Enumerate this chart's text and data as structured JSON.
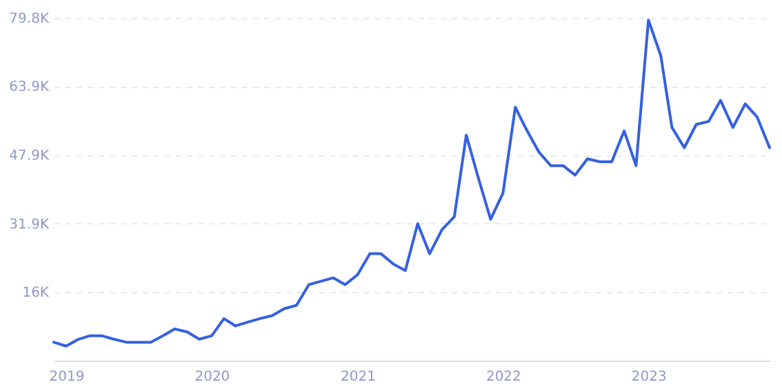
{
  "chart_data": {
    "type": "line",
    "x": [
      "2018-12",
      "2019-01",
      "2019-02",
      "2019-03",
      "2019-04",
      "2019-05",
      "2019-06",
      "2019-07",
      "2019-08",
      "2019-09",
      "2019-10",
      "2019-11",
      "2019-12",
      "2020-01",
      "2020-02",
      "2020-03",
      "2020-04",
      "2020-05",
      "2020-06",
      "2020-07",
      "2020-08",
      "2020-09",
      "2020-10",
      "2020-11",
      "2020-12",
      "2021-01",
      "2021-02",
      "2021-03",
      "2021-04",
      "2021-05",
      "2021-06",
      "2021-07",
      "2021-08",
      "2021-09",
      "2021-10",
      "2021-11",
      "2021-12",
      "2022-01",
      "2022-02",
      "2022-03",
      "2022-04",
      "2022-05",
      "2022-06",
      "2022-07",
      "2022-08",
      "2022-09",
      "2022-10",
      "2022-11",
      "2022-12",
      "2023-01",
      "2023-02",
      "2023-03",
      "2023-04",
      "2023-05",
      "2023-06",
      "2023-07",
      "2023-08",
      "2023-09",
      "2023-10",
      "2023-11"
    ],
    "series": [
      {
        "color": "#3461e0",
        "values": [
          4.3,
          3.4,
          5.0,
          5.8,
          5.8,
          5.0,
          4.3,
          4.3,
          4.3,
          5.8,
          7.4,
          6.7,
          5.0,
          5.8,
          9.8,
          8.1,
          9.0,
          9.8,
          10.5,
          12.1,
          12.9,
          17.7,
          18.5,
          19.3,
          17.7,
          20.0,
          24.9,
          24.9,
          22.5,
          21.0,
          31.9,
          24.9,
          30.5,
          33.5,
          52.5,
          42.3,
          32.9,
          39.0,
          59.0,
          53.8,
          48.6,
          45.4,
          45.4,
          43.2,
          47.0,
          46.3,
          46.3,
          53.5,
          45.4,
          79.3,
          71.0,
          54.3,
          49.6,
          55.0,
          55.7,
          60.6,
          54.3,
          59.8,
          56.7,
          49.6
        ]
      }
    ],
    "xlim": [
      "2018-12",
      "2023-11"
    ],
    "xticks": [
      "2019",
      "2020",
      "2021",
      "2022",
      "2023"
    ],
    "ylim": [
      0,
      79.8
    ],
    "yticks": [
      {
        "value": 16,
        "label": "16K"
      },
      {
        "value": 31.9,
        "label": "31.9K"
      },
      {
        "value": 47.9,
        "label": "47.9K"
      },
      {
        "value": 63.9,
        "label": "63.9K"
      },
      {
        "value": 79.8,
        "label": "79.8K"
      }
    ],
    "grid": "y",
    "line_style": "solid",
    "marker": "none"
  }
}
